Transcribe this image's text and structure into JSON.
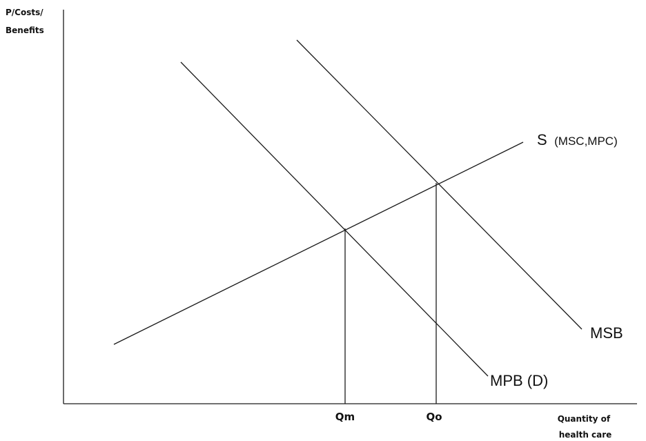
{
  "y_axis_label": [
    "P/Costs/",
    "Benefits"
  ],
  "x_axis_label": [
    "Quantity of",
    "health care"
  ],
  "ticks": {
    "qm": "Qm",
    "qo": "Qo"
  },
  "curves": {
    "supply": {
      "main": "S",
      "sub": "(MSC,MPC)"
    },
    "msb": "MSB",
    "mpb": "MPB (D)"
  }
}
